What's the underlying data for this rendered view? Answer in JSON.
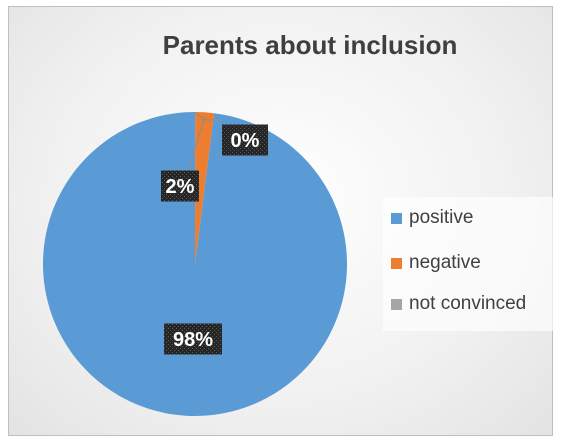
{
  "chart_data": {
    "type": "pie",
    "title": "Parents about inclusion",
    "categories": [
      "positive",
      "negative",
      "not convinced"
    ],
    "values": [
      98,
      2,
      0
    ],
    "data_labels": [
      "98%",
      "2%",
      "0%"
    ],
    "colors": [
      "#5b9bd5",
      "#ed7d31",
      "#a5a5a5"
    ],
    "legend_position": "right"
  }
}
